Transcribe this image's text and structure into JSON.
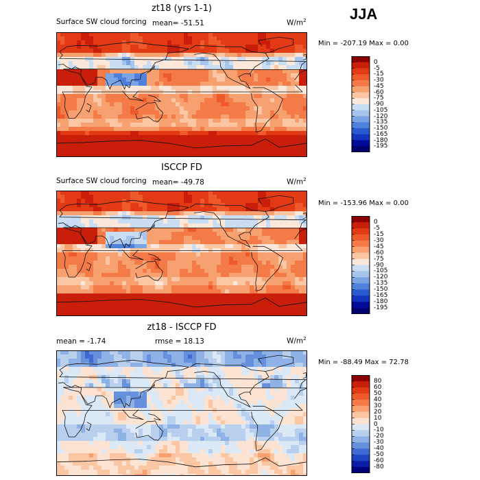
{
  "season": "JJA",
  "panels": [
    {
      "title": "zt18 (yrs 1-1)",
      "subtitle_left": "Surface SW cloud forcing",
      "mean_text": "mean= -51.51",
      "rmse_text": "",
      "units": "W/m",
      "units_sup": "2",
      "minmax_text": "Min = -207.19 Max =   0.00",
      "colorbar_labels": [
        "0",
        "-5",
        "-15",
        "-30",
        "-45",
        "-60",
        "-75",
        "-90",
        "-105",
        "-120",
        "-135",
        "-150",
        "-165",
        "-180",
        "-195"
      ]
    },
    {
      "title": "ISCCP FD",
      "subtitle_left": "Surface SW cloud forcing",
      "mean_text": "mean= -49.78",
      "rmse_text": "",
      "units": "W/m",
      "units_sup": "2",
      "minmax_text": "Min = -153.96 Max =   0.00",
      "colorbar_labels": [
        "0",
        "-5",
        "-15",
        "-30",
        "-45",
        "-60",
        "-75",
        "-90",
        "-105",
        "-120",
        "-135",
        "-150",
        "-165",
        "-180",
        "-195"
      ]
    },
    {
      "title": "zt18 - ISCCP FD",
      "subtitle_left": "",
      "mean_text": "mean =   -1.74",
      "rmse_text": "rmse =  18.13",
      "units": "W/m",
      "units_sup": "2",
      "minmax_text": "Min = -88.49 Max =  72.78",
      "colorbar_labels": [
        "80",
        "60",
        "50",
        "40",
        "30",
        "20",
        "10",
        "0",
        "-10",
        "-20",
        "-30",
        "-40",
        "-50",
        "-60",
        "-80"
      ]
    }
  ],
  "colors": {
    "forcing_scale": [
      "#8b0000",
      "#c81e0a",
      "#e23a14",
      "#ee5a2a",
      "#f47a48",
      "#f7a070",
      "#fac6a4",
      "#fbe8da",
      "#c9ddf3",
      "#a6c4ec",
      "#7aa4e4",
      "#4f80dc",
      "#2a5ad0",
      "#1234bf",
      "#000c99",
      "#00006e"
    ],
    "diff_scale": [
      "#8b0000",
      "#c81e0a",
      "#e23a14",
      "#ee5a2a",
      "#f47a48",
      "#f7a070",
      "#fac6a4",
      "#fde3d2",
      "#dbe8f6",
      "#b8d0ee",
      "#8fb2e6",
      "#6690dc",
      "#3f6ad2",
      "#1e44c4",
      "#0a1eaa",
      "#00007a"
    ]
  },
  "chart_data": [
    {
      "type": "heatmap",
      "title": "zt18 (yrs 1-1)",
      "variable": "Surface SW cloud forcing",
      "units": "W/m2",
      "mean": -51.51,
      "min": -207.19,
      "max": 0.0,
      "levels": [
        0,
        -5,
        -15,
        -30,
        -45,
        -60,
        -75,
        -90,
        -105,
        -120,
        -135,
        -150,
        -165,
        -180,
        -195
      ]
    },
    {
      "type": "heatmap",
      "title": "ISCCP FD",
      "variable": "Surface SW cloud forcing",
      "units": "W/m2",
      "mean": -49.78,
      "min": -153.96,
      "max": 0.0,
      "levels": [
        0,
        -5,
        -15,
        -30,
        -45,
        -60,
        -75,
        -90,
        -105,
        -120,
        -135,
        -150,
        -165,
        -180,
        -195
      ]
    },
    {
      "type": "heatmap",
      "title": "zt18 - ISCCP FD",
      "units": "W/m2",
      "mean": -1.74,
      "rmse": 18.13,
      "min": -88.49,
      "max": 72.78,
      "levels": [
        80,
        60,
        50,
        40,
        30,
        20,
        10,
        0,
        -10,
        -20,
        -30,
        -40,
        -50,
        -60,
        -80
      ]
    }
  ]
}
